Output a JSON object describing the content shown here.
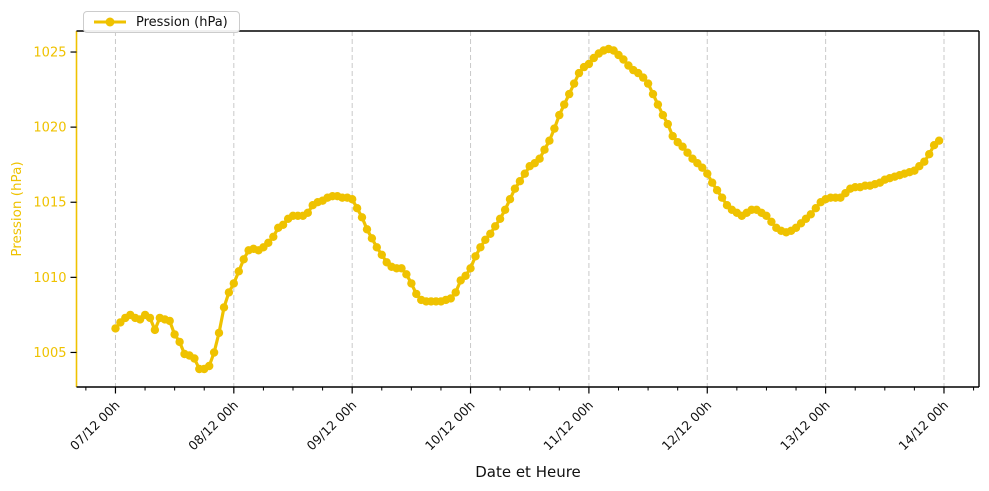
{
  "figure": {
    "legend_label": "Pression (hPa)",
    "xlabel": "Date et Heure",
    "ylabel": "Pression (hPa)"
  },
  "colors": {
    "accent": "#EFC200",
    "text": "#111111",
    "grid": "#c9c9c9",
    "spine": "#000000",
    "legend_border": "#cccccc"
  },
  "chart_data": {
    "type": "line",
    "title": "",
    "xlabel": "Date et Heure",
    "ylabel": "Pression (hPa)",
    "grid": "vertical-dashed-only",
    "legend_position": "upper-left",
    "x_tick_labels": [
      "07/12 00h",
      "08/12 00h",
      "09/12 00h",
      "10/12 00h",
      "11/12 00h",
      "12/12 00h",
      "13/12 00h",
      "14/12 00h"
    ],
    "x_tick_hours": [
      0,
      24,
      48,
      72,
      96,
      120,
      144,
      168
    ],
    "x_minor_tick_step_hours": 6,
    "y_ticks": [
      1005,
      1010,
      1015,
      1020,
      1025
    ],
    "ylim": [
      1002.7,
      1026.4
    ],
    "xlim_hours": [
      -7.9,
      175.1
    ],
    "series": [
      {
        "name": "Pression (hPa)",
        "color": "#EFC200",
        "marker": "circle",
        "x_start": "07/12 00h",
        "x_interval_hours": 1,
        "values": [
          1006.6,
          1007.0,
          1007.3,
          1007.5,
          1007.3,
          1007.2,
          1007.5,
          1007.3,
          1006.5,
          1007.3,
          1007.2,
          1007.1,
          1006.2,
          1005.7,
          1004.9,
          1004.8,
          1004.6,
          1003.9,
          1003.9,
          1004.1,
          1005.0,
          1006.3,
          1008.0,
          1009.0,
          1009.6,
          1010.4,
          1011.2,
          1011.8,
          1011.9,
          1011.8,
          1012.0,
          1012.3,
          1012.7,
          1013.3,
          1013.5,
          1013.9,
          1014.1,
          1014.1,
          1014.1,
          1014.3,
          1014.8,
          1015.0,
          1015.1,
          1015.3,
          1015.4,
          1015.4,
          1015.3,
          1015.3,
          1015.2,
          1014.6,
          1014.0,
          1013.2,
          1012.6,
          1012.0,
          1011.5,
          1011.0,
          1010.7,
          1010.6,
          1010.6,
          1010.2,
          1009.6,
          1008.9,
          1008.5,
          1008.4,
          1008.4,
          1008.4,
          1008.4,
          1008.5,
          1008.6,
          1009.0,
          1009.8,
          1010.1,
          1010.6,
          1011.4,
          1012.0,
          1012.5,
          1012.9,
          1013.4,
          1013.9,
          1014.5,
          1015.2,
          1015.9,
          1016.4,
          1016.9,
          1017.4,
          1017.6,
          1017.9,
          1018.5,
          1019.1,
          1019.9,
          1020.8,
          1021.5,
          1022.2,
          1022.9,
          1023.6,
          1024.0,
          1024.2,
          1024.6,
          1024.9,
          1025.1,
          1025.2,
          1025.1,
          1024.8,
          1024.5,
          1024.1,
          1023.8,
          1023.6,
          1023.3,
          1022.9,
          1022.2,
          1021.5,
          1020.8,
          1020.2,
          1019.4,
          1019.0,
          1018.7,
          1018.3,
          1017.9,
          1017.6,
          1017.3,
          1016.9,
          1016.3,
          1015.8,
          1015.3,
          1014.8,
          1014.5,
          1014.3,
          1014.1,
          1014.3,
          1014.5,
          1014.5,
          1014.3,
          1014.1,
          1013.7,
          1013.3,
          1013.1,
          1013.0,
          1013.1,
          1013.3,
          1013.6,
          1013.9,
          1014.2,
          1014.6,
          1015.0,
          1015.2,
          1015.3,
          1015.3,
          1015.3,
          1015.6,
          1015.9,
          1016.0,
          1016.0,
          1016.1,
          1016.1,
          1016.2,
          1016.3,
          1016.5,
          1016.6,
          1016.7,
          1016.8,
          1016.9,
          1017.0,
          1017.1,
          1017.4,
          1017.7,
          1018.2,
          1018.8,
          1019.1
        ]
      }
    ]
  }
}
